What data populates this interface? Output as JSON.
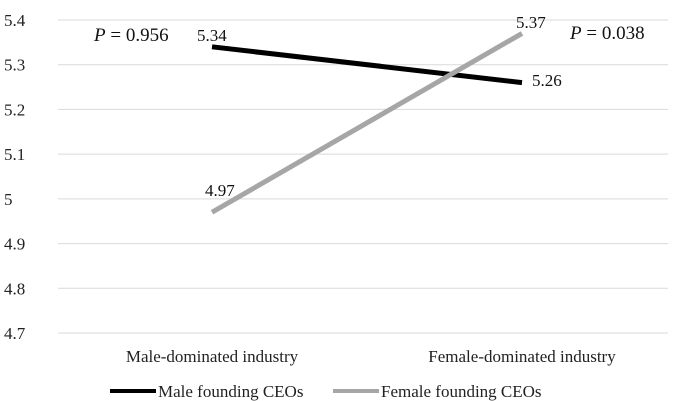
{
  "chart_data": {
    "type": "line",
    "categories": [
      "Male-dominated industry",
      "Female-dominated industry"
    ],
    "ylim": [
      4.7,
      5.4
    ],
    "yticks": [
      4.7,
      4.8,
      4.9,
      5,
      5.1,
      5.2,
      5.3,
      5.4
    ],
    "ytick_labels": [
      "4.7",
      "4.8",
      "4.9",
      "5",
      "5.1",
      "5.2",
      "5.3",
      "5.4"
    ],
    "grid": true,
    "legend_position": "bottom",
    "series": [
      {
        "name": "Male founding CEOs",
        "values": [
          5.34,
          5.26
        ],
        "value_labels": [
          "5.34",
          "5.26"
        ],
        "color": "#000000"
      },
      {
        "name": "Female founding CEOs",
        "values": [
          4.97,
          5.37
        ],
        "value_labels": [
          "4.97",
          "5.37"
        ],
        "color": "#a6a6a6"
      }
    ],
    "annotations": [
      {
        "italic": "P",
        "text": " = 0.956"
      },
      {
        "italic": "P",
        "text": " = 0.038"
      }
    ]
  }
}
